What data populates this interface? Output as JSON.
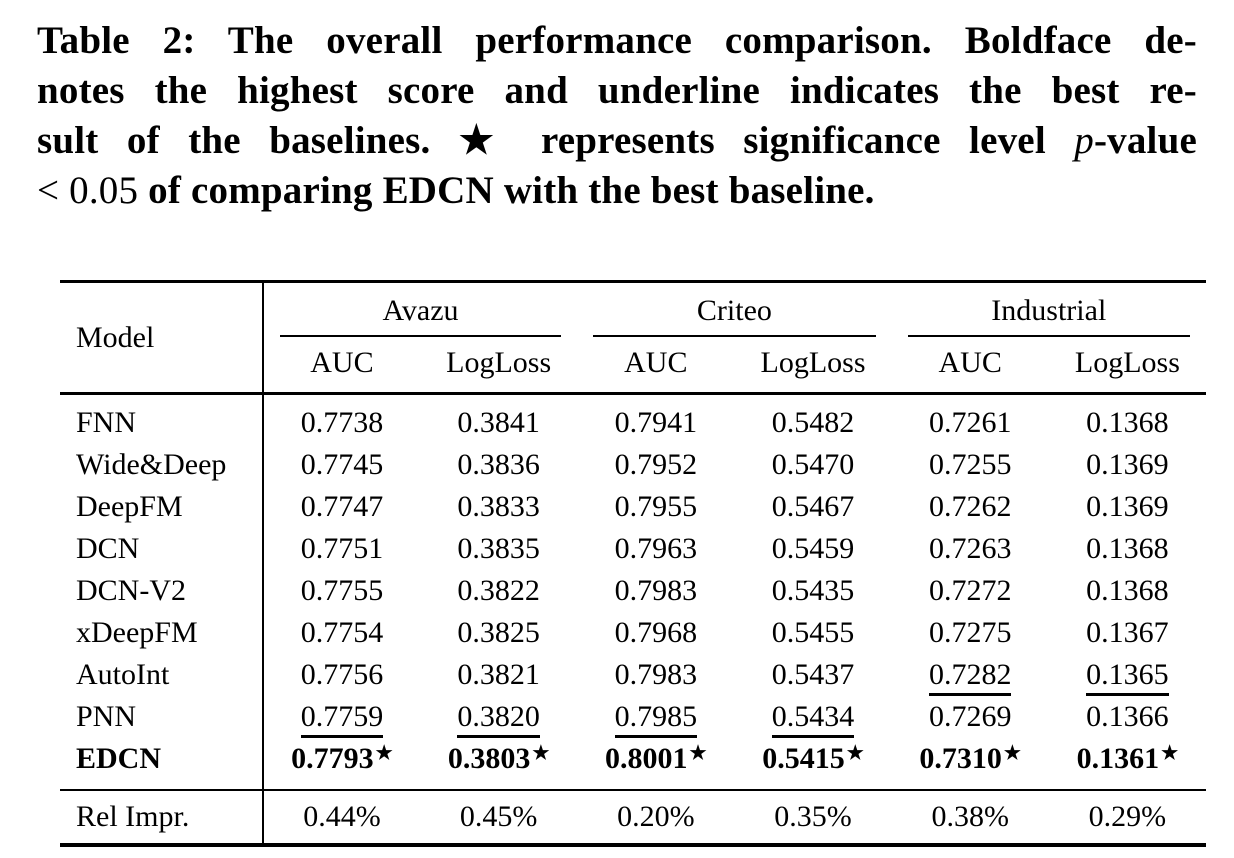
{
  "caption": {
    "l1": "Table 2: The overall performance comparison. Boldface de-",
    "l2": "notes the highest score and underline indicates the best re-",
    "l3a": "sult of the baselines. ",
    "star": "★",
    "l3b": " represents significance level ",
    "l3c_italic": "p",
    "l3d": "-value",
    "l4a": "< 0.05",
    "l4b": " of comparing EDCN with the best baseline."
  },
  "table": {
    "model_header": "Model",
    "star_char": "★",
    "groups": [
      {
        "label": "Avazu",
        "cols": [
          "AUC",
          "LogLoss"
        ]
      },
      {
        "label": "Criteo",
        "cols": [
          "AUC",
          "LogLoss"
        ]
      },
      {
        "label": "Industrial",
        "cols": [
          "AUC",
          "LogLoss"
        ]
      }
    ],
    "rows": [
      {
        "model": "FNN",
        "bold": false,
        "star": false,
        "underline": [],
        "values": [
          "0.7738",
          "0.3841",
          "0.7941",
          "0.5482",
          "0.7261",
          "0.1368"
        ]
      },
      {
        "model": "Wide&Deep",
        "bold": false,
        "star": false,
        "underline": [],
        "values": [
          "0.7745",
          "0.3836",
          "0.7952",
          "0.5470",
          "0.7255",
          "0.1369"
        ]
      },
      {
        "model": "DeepFM",
        "bold": false,
        "star": false,
        "underline": [],
        "values": [
          "0.7747",
          "0.3833",
          "0.7955",
          "0.5467",
          "0.7262",
          "0.1369"
        ]
      },
      {
        "model": "DCN",
        "bold": false,
        "star": false,
        "underline": [],
        "values": [
          "0.7751",
          "0.3835",
          "0.7963",
          "0.5459",
          "0.7263",
          "0.1368"
        ]
      },
      {
        "model": "DCN-V2",
        "bold": false,
        "star": false,
        "underline": [],
        "values": [
          "0.7755",
          "0.3822",
          "0.7983",
          "0.5435",
          "0.7272",
          "0.1368"
        ]
      },
      {
        "model": "xDeepFM",
        "bold": false,
        "star": false,
        "underline": [],
        "values": [
          "0.7754",
          "0.3825",
          "0.7968",
          "0.5455",
          "0.7275",
          "0.1367"
        ]
      },
      {
        "model": "AutoInt",
        "bold": false,
        "star": false,
        "underline": [
          4,
          5
        ],
        "values": [
          "0.7756",
          "0.3821",
          "0.7983",
          "0.5437",
          "0.7282",
          "0.1365"
        ]
      },
      {
        "model": "PNN",
        "bold": false,
        "star": false,
        "underline": [
          0,
          1,
          2,
          3
        ],
        "values": [
          "0.7759",
          "0.3820",
          "0.7985",
          "0.5434",
          "0.7269",
          "0.1366"
        ]
      },
      {
        "model": "EDCN",
        "bold": true,
        "star": true,
        "underline": [],
        "values": [
          "0.7793",
          "0.3803",
          "0.8001",
          "0.5415",
          "0.7310",
          "0.1361"
        ]
      }
    ],
    "footer": {
      "label": "Rel Impr.",
      "values": [
        "0.44%",
        "0.45%",
        "0.20%",
        "0.35%",
        "0.38%",
        "0.29%"
      ]
    }
  }
}
